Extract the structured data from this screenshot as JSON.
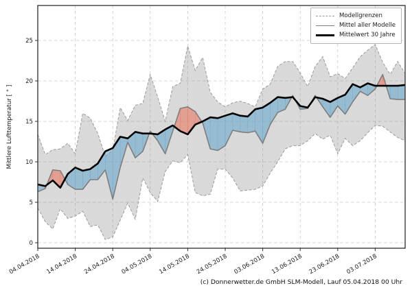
{
  "caption": "(c) Donnerwetter.de GmbH SLM-Modell, Lauf 05.04.2018 00 Uhr",
  "y_axis": {
    "label": "Mittlere Lufttemperatur [ ° ]",
    "ticks": [
      0,
      5,
      10,
      15,
      20,
      25
    ],
    "tick_labels": [
      "0",
      "5",
      "10",
      "15",
      "20",
      "25"
    ]
  },
  "x_axis": {
    "tick_days": [
      0,
      10,
      20,
      30,
      40,
      50,
      60,
      70,
      80,
      90
    ],
    "tick_labels": [
      "04.04.2018",
      "14.04.2018",
      "24.04.2018",
      "04.05.2018",
      "14.05.2018",
      "24.05.2018",
      "03.06.2018",
      "13.06.2018",
      "23.06.2018",
      "03.07.2018"
    ]
  },
  "legend": {
    "items": [
      {
        "label": "Modellgrenzen",
        "style": "dashed",
        "color": "#999999"
      },
      {
        "label": "Mittel aller Modelle",
        "style": "solid",
        "color": "#7d7d7d"
      },
      {
        "label": "Mittelwert 30 Jahre",
        "style": "bold",
        "color": "#000000"
      }
    ]
  },
  "colors": {
    "envelope_fill": "rgba(130,130,130,0.30)",
    "envelope_edge": "#999999",
    "below_fill": "rgba(110,170,205,0.62)",
    "above_fill": "rgba(235,120,100,0.60)",
    "model_mean_line": "#7d7d7d",
    "mean30_line": "#000000",
    "grid": "#c9c9c9",
    "spine": "#2b2b2b",
    "tick_text": "#1a1a1a"
  },
  "chart_data": {
    "type": "line",
    "title": "",
    "xlabel": "",
    "ylabel": "Mittlere Lufttemperatur [ ° ]",
    "x_unit": "days since 04.04.2018",
    "start_date": "04.04.2018",
    "ylim": [
      -0.7,
      29.3
    ],
    "xlim_days": [
      0,
      98
    ],
    "grid": true,
    "legend_position": "upper right",
    "x": [
      0,
      2,
      4,
      6,
      8,
      10,
      12,
      14,
      16,
      18,
      20,
      22,
      24,
      26,
      28,
      30,
      32,
      34,
      36,
      38,
      40,
      42,
      44,
      46,
      48,
      50,
      52,
      54,
      56,
      58,
      60,
      62,
      64,
      66,
      68,
      70,
      72,
      74,
      76,
      78,
      80,
      82,
      84,
      86,
      88,
      90,
      92,
      94,
      96,
      98
    ],
    "series": [
      {
        "name": "Modellgrenzen (obere Grenze)",
        "values": [
          13.4,
          10.9,
          11.5,
          11.6,
          12.3,
          11.0,
          16.0,
          15.4,
          13.5,
          10.7,
          11.4,
          16.7,
          15.1,
          17.0,
          17.2,
          20.8,
          18.0,
          15.0,
          19.3,
          19.7,
          24.3,
          21.3,
          22.9,
          18.6,
          17.4,
          16.8,
          17.3,
          17.5,
          17.2,
          16.8,
          19.0,
          19.6,
          21.8,
          22.4,
          22.4,
          21.0,
          19.3,
          21.8,
          23.0,
          20.5,
          20.9,
          20.3,
          21.6,
          23.0,
          23.8,
          24.5,
          22.3,
          20.8,
          22.4,
          20.9
        ]
      },
      {
        "name": "Modellgrenzen (untere Grenze)",
        "values": [
          4.3,
          2.6,
          1.7,
          4.2,
          3.0,
          3.3,
          3.9,
          2.0,
          2.2,
          0.4,
          0.7,
          2.8,
          4.9,
          2.9,
          8.0,
          6.2,
          5.1,
          8.8,
          10.1,
          9.9,
          10.9,
          6.2,
          5.8,
          6.0,
          9.1,
          9.1,
          8.0,
          6.4,
          6.5,
          6.6,
          7.0,
          8.6,
          10.0,
          11.6,
          12.0,
          12.0,
          12.6,
          13.5,
          12.8,
          13.3,
          11.0,
          12.9,
          12.0,
          12.6,
          13.6,
          14.5,
          14.4,
          13.7,
          13.0,
          12.6
        ]
      },
      {
        "name": "Mittel aller Modelle",
        "values": [
          6.3,
          6.7,
          9.0,
          8.9,
          7.2,
          6.6,
          6.6,
          7.8,
          7.8,
          9.0,
          5.4,
          9.3,
          12.4,
          10.5,
          11.3,
          13.8,
          12.6,
          11.0,
          13.8,
          16.6,
          16.8,
          16.2,
          14.8,
          11.6,
          11.4,
          12.0,
          13.9,
          13.7,
          13.6,
          13.8,
          12.3,
          14.6,
          16.1,
          16.5,
          18.2,
          16.5,
          16.6,
          18.2,
          16.8,
          15.5,
          16.9,
          15.9,
          17.4,
          18.7,
          18.2,
          19.0,
          20.8,
          17.8,
          17.7,
          17.7
        ]
      },
      {
        "name": "Mittelwert 30 Jahre",
        "values": [
          7.2,
          7.0,
          7.7,
          6.8,
          8.5,
          9.3,
          8.9,
          9.1,
          9.8,
          11.3,
          11.7,
          13.1,
          12.9,
          13.7,
          13.5,
          13.5,
          13.4,
          14.0,
          14.5,
          13.8,
          13.4,
          14.6,
          15.0,
          15.5,
          15.4,
          15.7,
          16.0,
          15.7,
          15.6,
          16.5,
          16.7,
          17.3,
          18.0,
          17.9,
          18.0,
          16.9,
          16.7,
          18.0,
          17.8,
          17.4,
          17.9,
          18.3,
          19.6,
          19.2,
          19.7,
          19.4,
          19.4,
          19.4,
          19.4,
          19.5
        ]
      }
    ]
  }
}
